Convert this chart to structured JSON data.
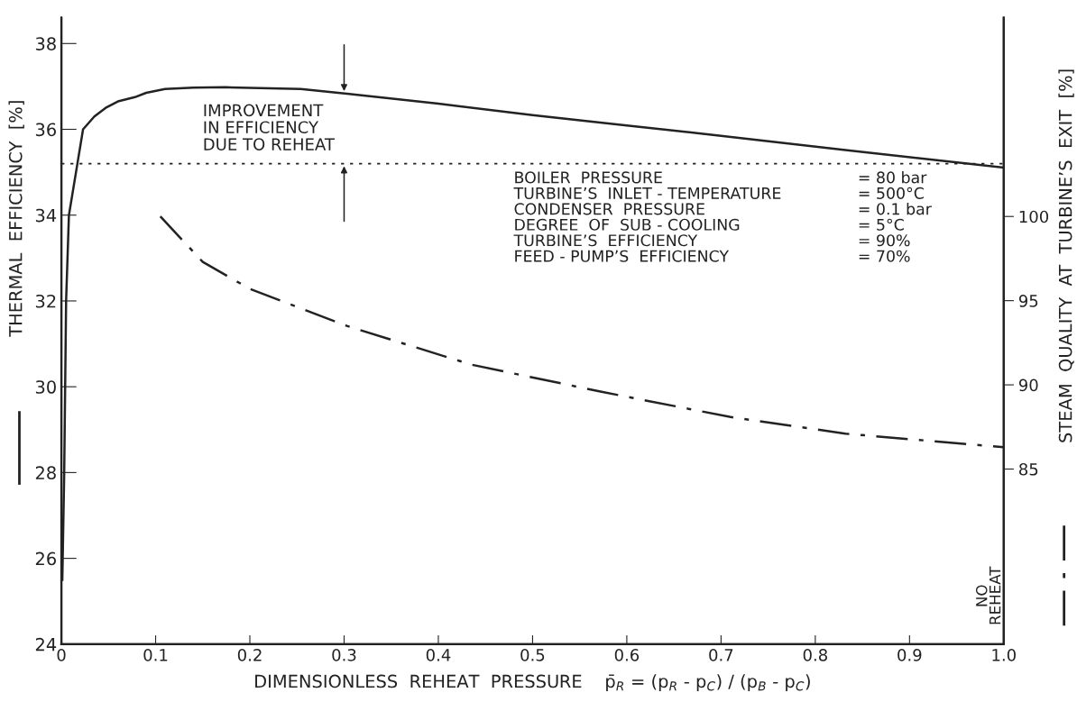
{
  "chart_data": {
    "type": "line",
    "xlabel": "DIMENSIONLESS  REHEAT  PRESSURE    p̄$_{R}$ = (p$_{R}$ - p$_{C}$) / (p$_{B}$ - p$_{C}$)",
    "ylabel": "THERMAL  EFFICIENCY  [%]",
    "y2label": "STEAM  QUALITY  AT  TURBINE’S  EXIT  [%]",
    "xlim": [
      0,
      1.0
    ],
    "xticks": [
      0,
      0.1,
      0.2,
      0.3,
      0.4,
      0.5,
      0.6,
      0.7,
      0.8,
      0.9,
      {
        "value": 1.0,
        "label": "1.0"
      }
    ],
    "ylim": [
      24,
      38.6
    ],
    "yticks": [
      24,
      26,
      28,
      30,
      32,
      34,
      36,
      38
    ],
    "y2lim": [
      74.6,
      111.8
    ],
    "y2ticks": [
      85,
      90,
      95,
      100
    ],
    "grid": false,
    "marker": "none",
    "series": [
      {
        "color": "#222222",
        "line_style": "solid",
        "x": [
          0.001,
          0.003,
          0.005,
          0.008,
          0.017,
          0.023,
          0.035,
          0.047,
          0.06,
          0.078,
          0.09,
          0.11,
          0.14,
          0.174,
          0.254,
          0.303,
          0.4,
          0.5,
          0.6,
          0.7,
          0.834,
          1.0
        ],
        "values": [
          25.5,
          28,
          32,
          34,
          35.2,
          36,
          36.3,
          36.5,
          36.65,
          36.75,
          36.85,
          36.94,
          36.97,
          36.98,
          36.94,
          36.83,
          36.6,
          36.33,
          36.09,
          35.85,
          35.51,
          35.11
        ]
      },
      {
        "color": "#222222",
        "line_style": "dashdot",
        "axis": "y2",
        "x": [
          0.105,
          0.15,
          0.2,
          0.303,
          0.435,
          0.572,
          0.709,
          0.832,
          1.0
        ],
        "values": [
          100,
          97.3,
          95.7,
          93.5,
          91.2,
          89.6,
          88.1,
          87.1,
          86.3
        ]
      }
    ],
    "ref_lines": [
      {
        "axis": "y",
        "value": 35.2,
        "label": "NO\nREHEAT",
        "line_style": "dotted",
        "color": "#222222"
      }
    ],
    "annotations": [
      {
        "text": "IMPROVEMENT\nIN EFFICIENCY\nDUE TO REHEAT",
        "x": 0.3,
        "y": 36.83
      },
      "BOILER  PRESSURE\nTURBINE’S  INLET - TEMPERATURE\nCONDENSER  PRESSURE\nDEGREE  OF  SUB - COOLING\nTURBINE’S  EFFICIENCY\nFEED - PUMP’S  EFFICIENCY",
      "= 80 bar\n= 500°C\n= 0.1 bar\n= 5°C\n= 90%\n= 70%"
    ]
  }
}
